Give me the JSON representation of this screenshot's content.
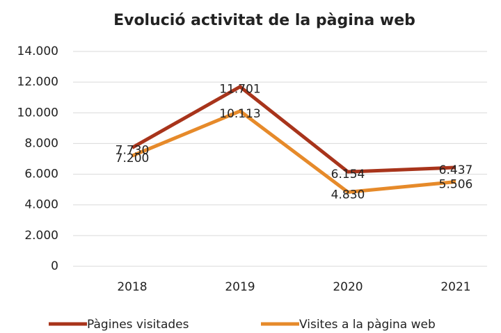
{
  "chart_data": {
    "type": "line",
    "title": "Evolució activitat de la pàgina web",
    "categories": [
      "2018",
      "2019",
      "2020",
      "2021"
    ],
    "series": [
      {
        "name": "Pàgines visitades",
        "color": "#a8341b",
        "values": [
          7730,
          11701,
          6154,
          6437
        ],
        "value_labels": [
          "7.730",
          "11.701",
          "6.154",
          "6.437"
        ]
      },
      {
        "name": "Visites a la pàgina web",
        "color": "#e68a2a",
        "values": [
          7200,
          10113,
          4830,
          5506
        ],
        "value_labels": [
          "7.200",
          "10.113",
          "4.830",
          "5.506"
        ]
      }
    ],
    "ylim": [
      0,
      14000
    ],
    "yticks": [
      0,
      {
        "value": 2000,
        "label": "2.000"
      },
      {
        "value": 4000,
        "label": "4.000"
      },
      {
        "value": 6000,
        "label": "6.000"
      },
      {
        "value": 8000,
        "label": "8.000"
      },
      {
        "value": 10000,
        "label": "10.000"
      },
      {
        "value": 12000,
        "label": "12.000"
      },
      {
        "value": 14000,
        "label": "14.000"
      }
    ],
    "grid": true,
    "legend": "bottom"
  }
}
